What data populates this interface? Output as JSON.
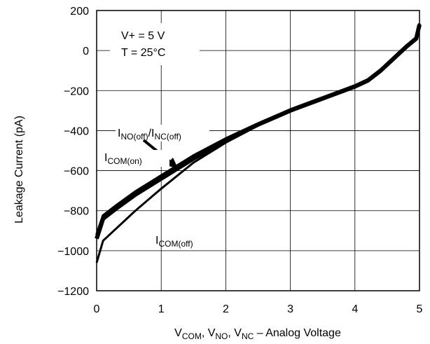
{
  "chart_data": {
    "type": "line",
    "xlabel": {
      "main": "V",
      "sub1": "COM",
      "sep1": ", V",
      "sub2": "NO",
      "sep2": ", V",
      "sub3": "NC",
      "tail": " – Analog Voltage"
    },
    "ylabel": "Leakage Current (pA)",
    "xlim": [
      0,
      5
    ],
    "ylim": [
      -1200,
      200
    ],
    "xticks": [
      "0",
      "1",
      "2",
      "3",
      "4",
      "5"
    ],
    "yticks": [
      "200",
      "0",
      "−200",
      "−400",
      "−600",
      "−800",
      "−1000",
      "−1200"
    ],
    "grid": true,
    "conditions": [
      "V+ = 5 V",
      "T = 25°C"
    ],
    "series": [
      {
        "name": "I_NO(off)/I_NC(off)",
        "x": [
          0,
          0.1,
          0.3,
          0.6,
          1.0,
          1.5,
          2.0,
          2.5,
          3.0,
          3.5,
          4.0,
          4.2,
          4.4,
          4.6,
          4.8,
          4.95,
          5.0
        ],
        "y": [
          -940,
          -840,
          -790,
          -720,
          -640,
          -540,
          -450,
          -370,
          -300,
          -240,
          -180,
          -150,
          -100,
          -40,
          20,
          60,
          130
        ]
      },
      {
        "name": "I_COM(on)",
        "x": [
          0,
          0.1,
          0.3,
          0.6,
          1.0,
          1.5,
          2.0,
          2.5,
          3.0,
          3.5,
          4.0,
          4.2,
          4.4,
          4.6,
          4.8,
          4.95,
          5.0
        ],
        "y": [
          -920,
          -825,
          -775,
          -705,
          -625,
          -525,
          -440,
          -365,
          -295,
          -235,
          -175,
          -145,
          -95,
          -35,
          25,
          65,
          135
        ]
      },
      {
        "name": "I_COM(off)",
        "x": [
          0,
          0.1,
          0.3,
          0.6,
          1.0,
          1.5,
          2.0,
          2.5,
          3.0,
          3.5,
          4.0,
          4.2,
          4.4,
          4.6,
          4.8,
          4.95,
          5.0
        ],
        "y": [
          -1060,
          -950,
          -890,
          -800,
          -690,
          -560,
          -460,
          -375,
          -305,
          -240,
          -178,
          -148,
          -98,
          -38,
          22,
          62,
          132
        ]
      }
    ],
    "labels": [
      {
        "main": "I",
        "sub1": "NO(off)",
        "mid": "/I",
        "sub2": "NC(off)"
      },
      {
        "main": "I",
        "sub1": "COM(on)"
      },
      {
        "main": "I",
        "sub1": "COM(off)"
      }
    ],
    "line_color": "#000000"
  }
}
